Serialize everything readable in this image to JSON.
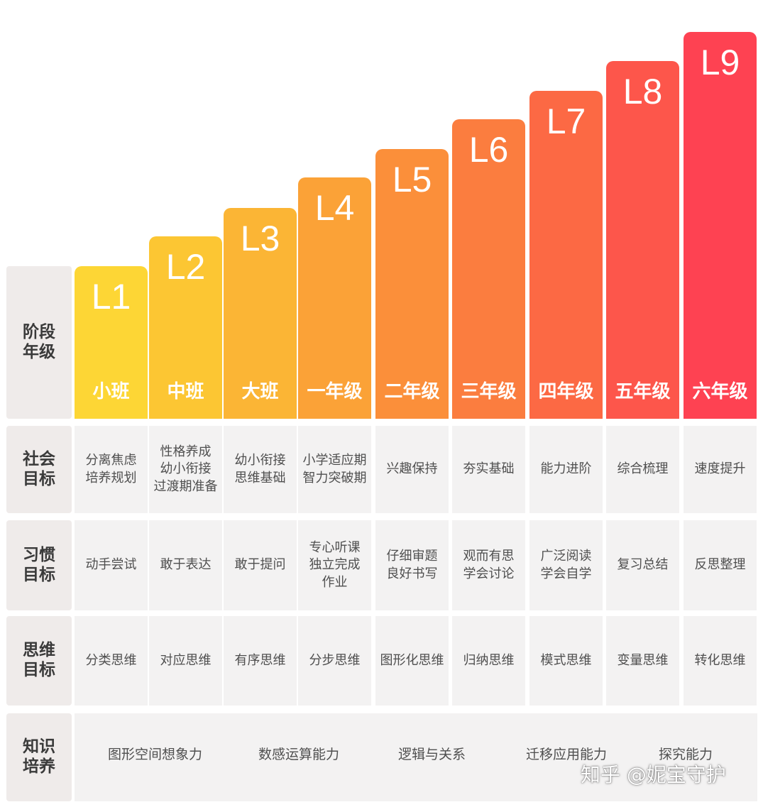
{
  "side_labels": {
    "stage": "阶段\n年级",
    "social": "社会\n目标",
    "habit": "习惯\n目标",
    "thinking": "思维\n目标",
    "knowledge": "知识\n培养"
  },
  "levels": [
    {
      "level": "L1",
      "grade": "小班",
      "social": "分离焦虑\n培养规划",
      "habit": "动手尝试",
      "thinking": "分类思维",
      "color": "#fdd635"
    },
    {
      "level": "L2",
      "grade": "中班",
      "social": "性格养成\n幼小衔接\n过渡期准备",
      "habit": "敢于表达",
      "thinking": "对应思维",
      "color": "#fcc633"
    },
    {
      "level": "L3",
      "grade": "大班",
      "social": "幼小衔接\n思维基础",
      "habit": "敢于提问",
      "thinking": "有序思维",
      "color": "#fbb535"
    },
    {
      "level": "L4",
      "grade": "一年级",
      "social": "小学适应期\n智力突破期",
      "habit": "专心听课\n独立完成\n作业",
      "thinking": "分步思维",
      "color": "#fba237"
    },
    {
      "level": "L5",
      "grade": "二年级",
      "social": "兴趣保持",
      "habit": "仔细审题\n良好书写",
      "thinking": "图形化思维",
      "color": "#fb8f3a"
    },
    {
      "level": "L6",
      "grade": "三年级",
      "social": "夯实基础",
      "habit": "观而有思\n学会讨论",
      "thinking": "归纳思维",
      "color": "#fb7d3f"
    },
    {
      "level": "L7",
      "grade": "四年级",
      "social": "能力进阶",
      "habit": "广泛阅读\n学会自学",
      "thinking": "模式思维",
      "color": "#fc6944"
    },
    {
      "level": "L8",
      "grade": "五年级",
      "social": "综合梳理",
      "habit": "复习总结",
      "thinking": "变量思维",
      "color": "#fd564b"
    },
    {
      "level": "L9",
      "grade": "六年级",
      "social": "速度提升",
      "habit": "反思整理",
      "thinking": "转化思维",
      "color": "#fe4252"
    }
  ],
  "knowledge": [
    "图形空间想象力",
    "数感运算能力",
    "逻辑与关系",
    "迁移应用能力",
    "探究能力"
  ],
  "watermark": "知乎 @妮宝守护"
}
